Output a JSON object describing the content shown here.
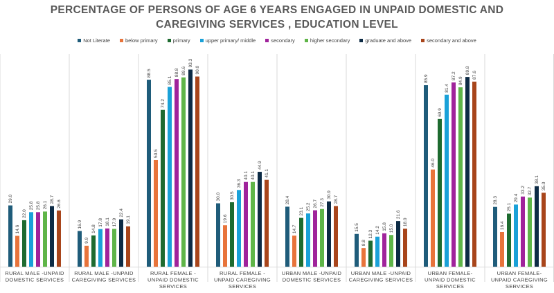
{
  "chart_data": {
    "type": "bar",
    "title_lines": [
      "PERCENTAGE OF PERSONS OF AGE 6 YEARS ENGAGED IN UNPAID DOMESTIC AND",
      "CAREGIVING SERVICES , EDUCATION LEVEL"
    ],
    "categories": [
      [
        "RURAL MALE -UNPAID",
        "DOMESTIC SERVICES"
      ],
      [
        "RURAL MALE -UNPAID",
        "CAREGIVING SERVICES"
      ],
      [
        "RURAL FEMALE -",
        "UNPAID DOMESTIC",
        "SERVICES"
      ],
      [
        "RURAL FEMALE -",
        "UNPAID CAREGIVING",
        "SERVICES"
      ],
      [
        "URBAN MALE -UNPAID",
        "DOMESTIC SERVICES"
      ],
      [
        "URBAN MALE -UNPAID",
        "CAREGIVING SERVICES"
      ],
      [
        "URBAN FEMALE-",
        "UNPAID DOMESTIC",
        "SERVICES"
      ],
      [
        "URBAN FEMALE-",
        "UNPAID CAREGIVING",
        "SERVICES"
      ]
    ],
    "series": [
      {
        "name": "Not Literate",
        "color": "#1f5c7a",
        "values": [
          29.0,
          16.9,
          88.5,
          30.0,
          28.4,
          15.5,
          85.9,
          28.3
        ]
      },
      {
        "name": "below primary",
        "color": "#e8743b",
        "values": [
          14.6,
          9.9,
          50.5,
          19.6,
          14.7,
          8.8,
          46.0,
          16.4
        ]
      },
      {
        "name": "primary",
        "color": "#1e6b30",
        "values": [
          22.0,
          14.8,
          74.2,
          30.5,
          23.1,
          12.3,
          69.9,
          25.1
        ]
      },
      {
        "name": "upper primary/ middle",
        "color": "#1aa1d8",
        "values": [
          25.8,
          17.8,
          85.1,
          36.3,
          25.2,
          14.2,
          81.4,
          29.4
        ]
      },
      {
        "name": "secondary",
        "color": "#a0239b",
        "values": [
          25.8,
          18.1,
          88.8,
          40.1,
          26.7,
          15.8,
          87.2,
          33.2
        ]
      },
      {
        "name": "higher secondary",
        "color": "#5fb548",
        "values": [
          26.1,
          17.9,
          89.6,
          40.1,
          27.3,
          15.0,
          84.9,
          32.7
        ]
      },
      {
        "name": "graduate and above",
        "color": "#0d2b45",
        "values": [
          28.7,
          22.4,
          93.3,
          44.9,
          30.9,
          21.6,
          89.8,
          38.1
        ]
      },
      {
        "name": "secondary and above",
        "color": "#a8451b",
        "values": [
          26.6,
          19.1,
          90.0,
          41.1,
          28.7,
          18.0,
          87.6,
          35.0
        ]
      }
    ],
    "ylim": [
      0,
      100
    ],
    "grid": false,
    "legend_position": "top"
  }
}
